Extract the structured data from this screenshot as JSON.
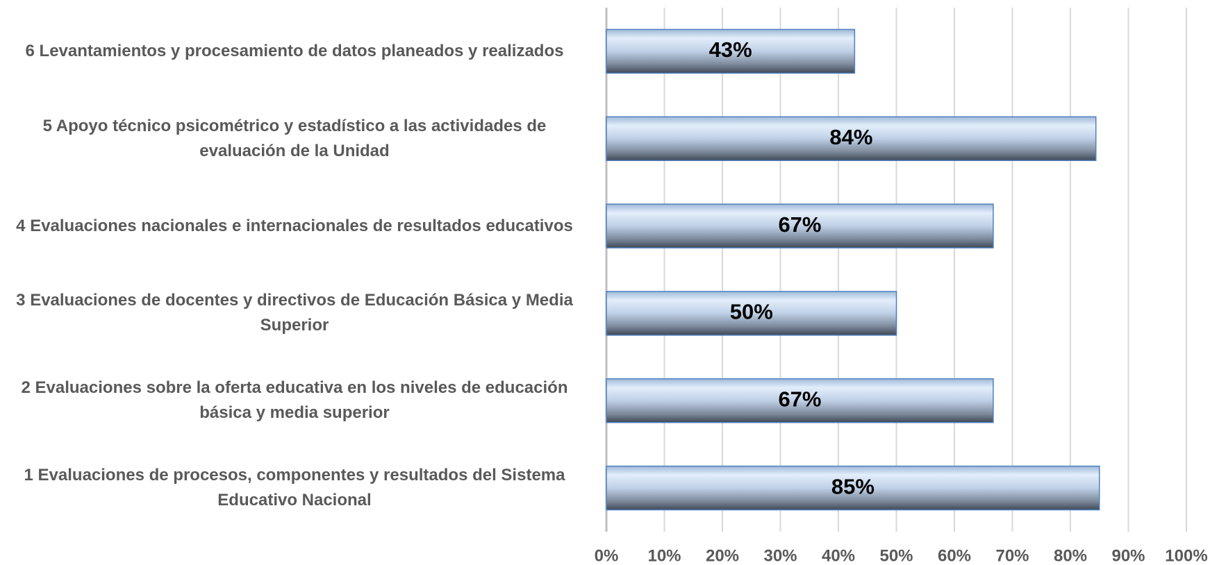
{
  "chart_data": {
    "type": "barh",
    "categories": [
      "1 Evaluaciones de procesos, componentes y resultados del Sistema Educativo Nacional",
      "2 Evaluaciones sobre la oferta educativa en los niveles de educación básica y media superior",
      "3 Evaluaciones de docentes y directivos de Educación Básica y Media Superior",
      "4 Evaluaciones nacionales e internacionales de resultados educativos",
      "5 Apoyo técnico psicométrico y estadístico  a las actividades de evaluación de la Unidad",
      "6 Levantamientos y procesamiento de datos  planeados y realizados"
    ],
    "values": [
      85,
      66.7,
      50,
      66.7,
      84.4,
      42.8
    ],
    "value_labels": [
      "85%",
      "67%",
      "50%",
      "67%",
      "84%",
      "43%"
    ],
    "color": "#4f81bd",
    "xlim": [
      0,
      100
    ],
    "xticks": [
      {
        "value": 0,
        "label": "0%"
      },
      {
        "value": 10,
        "label": "10%"
      },
      {
        "value": 20,
        "label": "20%"
      },
      {
        "value": 30,
        "label": "30%"
      },
      {
        "value": 40,
        "label": "40%"
      },
      {
        "value": 50,
        "label": "50%"
      },
      {
        "value": 60,
        "label": "60%"
      },
      {
        "value": 70,
        "label": "70%"
      },
      {
        "value": 80,
        "label": "80%"
      },
      {
        "value": 90,
        "label": "90%"
      },
      {
        "value": 100,
        "label": "100%"
      }
    ],
    "grid": true
  }
}
